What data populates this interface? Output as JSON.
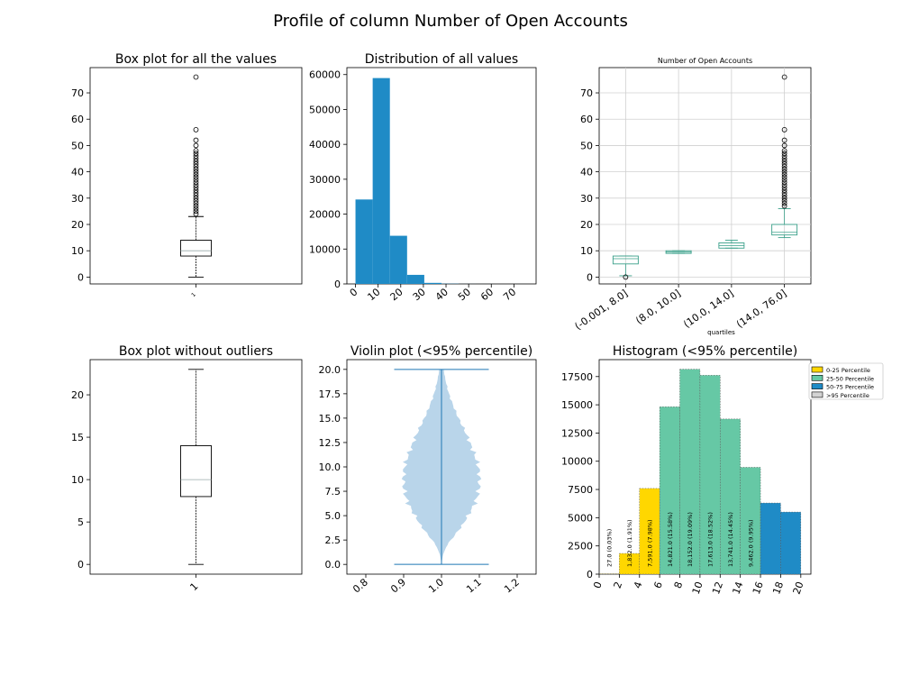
{
  "suptitle": "Profile of column  Number of Open Accounts",
  "chart_data": [
    {
      "type": "box",
      "title": "Box plot for all the values",
      "category_label": "1",
      "ylim": [
        -2.6,
        79.6
      ],
      "yticks": [
        0,
        10,
        20,
        30,
        40,
        50,
        60,
        70
      ],
      "whisker_low": 0,
      "q1": 8,
      "median": 10,
      "q3": 14,
      "whisker_high": 23,
      "outliers": [
        24,
        25,
        26,
        27,
        28,
        29,
        30,
        31,
        32,
        33,
        34,
        35,
        36,
        37,
        38,
        39,
        40,
        41,
        42,
        43,
        44,
        45,
        46,
        47,
        48,
        50,
        52,
        56,
        76
      ]
    },
    {
      "type": "histogram",
      "title": "Distribution of all values",
      "xlim": [
        -3.8,
        79.8
      ],
      "ylim": [
        0,
        62000
      ],
      "xticks": [
        0,
        10,
        20,
        30,
        40,
        50,
        60,
        70
      ],
      "yticks": [
        0,
        10000,
        20000,
        30000,
        40000,
        50000,
        60000
      ],
      "bins": [
        {
          "x0": 0,
          "x1": 7.6,
          "count": 24200
        },
        {
          "x0": 7.6,
          "x1": 15.2,
          "count": 59000
        },
        {
          "x0": 15.2,
          "x1": 22.8,
          "count": 13800
        },
        {
          "x0": 22.8,
          "x1": 30.4,
          "count": 2600
        },
        {
          "x0": 30.4,
          "x1": 38.0,
          "count": 300
        },
        {
          "x0": 38.0,
          "x1": 45.6,
          "count": 60
        },
        {
          "x0": 45.6,
          "x1": 53.2,
          "count": 10
        },
        {
          "x0": 53.2,
          "x1": 60.8,
          "count": 2
        },
        {
          "x0": 60.8,
          "x1": 68.4,
          "count": 0
        },
        {
          "x0": 68.4,
          "x1": 76.0,
          "count": 1
        }
      ]
    },
    {
      "type": "box",
      "title": "Number of Open Accounts",
      "xlabel": "quartiles",
      "ylim": [
        -2.6,
        79.6
      ],
      "yticks": [
        0,
        10,
        20,
        30,
        40,
        50,
        60,
        70
      ],
      "grid": true,
      "categories": [
        "(-0.001, 8.0]",
        "(8.0, 10.0]",
        "(10.0, 14.0]",
        "(14.0, 76.0]"
      ],
      "boxes": [
        {
          "whisker_low": 0.5,
          "q1": 5,
          "median": 7,
          "q3": 8,
          "whisker_high": 8,
          "outliers": [
            0
          ]
        },
        {
          "whisker_low": 9,
          "q1": 9,
          "median": 9.5,
          "q3": 10,
          "whisker_high": 10,
          "outliers": []
        },
        {
          "whisker_low": 11,
          "q1": 11,
          "median": 12,
          "q3": 13,
          "whisker_high": 14,
          "outliers": []
        },
        {
          "whisker_low": 15,
          "q1": 16,
          "median": 17,
          "q3": 20,
          "whisker_high": 26,
          "outliers": [
            27,
            28,
            29,
            30,
            31,
            32,
            33,
            34,
            35,
            36,
            37,
            38,
            39,
            40,
            41,
            42,
            43,
            44,
            45,
            46,
            47,
            48,
            50,
            52,
            56,
            76
          ]
        }
      ]
    },
    {
      "type": "box",
      "title": "Box plot without outliers",
      "category_label": "1",
      "ylim": [
        -1.15,
        24.15
      ],
      "yticks": [
        0,
        5,
        10,
        15,
        20
      ],
      "whisker_low": 0,
      "q1": 8,
      "median": 10,
      "q3": 14,
      "whisker_high": 23,
      "outliers": []
    },
    {
      "type": "violin",
      "title": "Violin plot (<95% percentile)",
      "xlim": [
        0.75,
        1.25
      ],
      "ylim": [
        -1.0,
        21.0
      ],
      "xticks": [
        "0.8",
        "0.9",
        "1.0",
        "1.1",
        "1.2"
      ],
      "yticks": [
        "0.0",
        "2.5",
        "5.0",
        "7.5",
        "10.0",
        "12.5",
        "15.0",
        "17.5",
        "20.0"
      ],
      "position": 1.0,
      "min": 0,
      "max": 20,
      "cap_halfwidth": 0.125,
      "halfwidth_profile": [
        [
          0,
          0.0
        ],
        [
          1,
          0.004
        ],
        [
          2,
          0.015
        ],
        [
          3,
          0.035
        ],
        [
          4,
          0.055
        ],
        [
          5,
          0.07
        ],
        [
          6,
          0.085
        ],
        [
          7,
          0.095
        ],
        [
          8,
          0.1
        ],
        [
          9,
          0.1
        ],
        [
          10,
          0.098
        ],
        [
          11,
          0.09
        ],
        [
          12,
          0.08
        ],
        [
          13,
          0.07
        ],
        [
          14,
          0.058
        ],
        [
          15,
          0.045
        ],
        [
          16,
          0.034
        ],
        [
          17,
          0.024
        ],
        [
          18,
          0.016
        ],
        [
          19,
          0.01
        ],
        [
          20,
          0.006
        ]
      ]
    },
    {
      "type": "bar",
      "title": "Histogram (<95% percentile)",
      "xlim": [
        0,
        21
      ],
      "ylim": [
        0,
        19000
      ],
      "xticks": [
        0,
        2,
        4,
        6,
        8,
        10,
        12,
        14,
        16,
        18,
        20
      ],
      "yticks": [
        0,
        2500,
        5000,
        7500,
        10000,
        12500,
        15000,
        17500
      ],
      "legend_position": "upper-right-outside",
      "groups": [
        {
          "name": "0-25 Percentile",
          "color": "#ffd700"
        },
        {
          "name": "25-50 Percentile",
          "color": "#66c8a5"
        },
        {
          "name": "50-75 Percentile",
          "color": "#1f8bc6"
        },
        {
          "name": ">95 Percentile",
          "color": "#d3d3d3"
        }
      ],
      "bars": [
        {
          "x0": 0,
          "x1": 2,
          "value": 27,
          "group": 0,
          "label": "27.0  (0.03%)"
        },
        {
          "x0": 2,
          "x1": 4,
          "value": 1832,
          "group": 0,
          "label": "1,832.0  (1.91%)"
        },
        {
          "x0": 4,
          "x1": 6,
          "value": 7591,
          "group": 0,
          "label": "7,591.0  (7.98%)"
        },
        {
          "x0": 6,
          "x1": 8,
          "value": 14821,
          "group": 1,
          "label": "14,821.0  (15.58%)"
        },
        {
          "x0": 8,
          "x1": 10,
          "value": 18152,
          "group": 1,
          "label": "18,152.0  (19.09%)"
        },
        {
          "x0": 10,
          "x1": 12,
          "value": 17613,
          "group": 1,
          "label": "17,613.0  (18.52%)"
        },
        {
          "x0": 12,
          "x1": 14,
          "value": 13741,
          "group": 1,
          "label": "13,741.0  (14.45%)"
        },
        {
          "x0": 14,
          "x1": 16,
          "value": 9462,
          "group": 1,
          "label": "9,462.0  (9.95%)"
        },
        {
          "x0": 16,
          "x1": 18,
          "value": 6300,
          "group": 2,
          "label": ""
        },
        {
          "x0": 18,
          "x1": 20,
          "value": 5500,
          "group": 2,
          "label": ""
        }
      ]
    }
  ]
}
